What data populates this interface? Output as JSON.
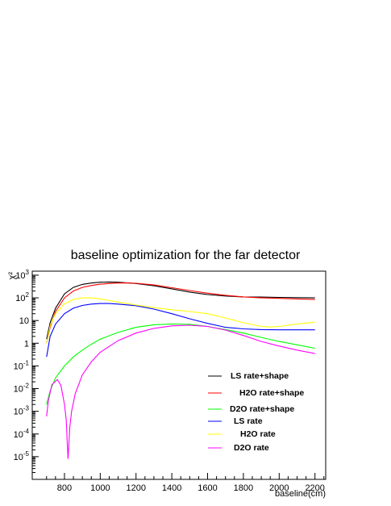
{
  "chart_data": {
    "type": "line",
    "title": "baseline optimization for the far detector",
    "xlabel": "baseline(cm)",
    "ylabel": "χ²",
    "xlim": [
      620,
      2260
    ],
    "ylim": [
      1e-06,
      1500
    ],
    "yscale": "log",
    "grid": false,
    "legend_position": "bottom-right",
    "x_ticks": [
      {
        "value": 800,
        "label": "800"
      },
      {
        "value": 1000,
        "label": "1000"
      },
      {
        "value": 1200,
        "label": "1200"
      },
      {
        "value": 1400,
        "label": "1400"
      },
      {
        "value": 1600,
        "label": "1600"
      },
      {
        "value": 1800,
        "label": "1800"
      },
      {
        "value": 2000,
        "label": "2000"
      },
      {
        "value": 2200,
        "label": "2200"
      }
    ],
    "y_ticks": [
      {
        "value": 1000,
        "base": "10",
        "exp": "3"
      },
      {
        "value": 100,
        "base": "10",
        "exp": "2"
      },
      {
        "value": 10,
        "base": "10",
        "exp": ""
      },
      {
        "value": 1,
        "base": "1",
        "exp": ""
      },
      {
        "value": 0.1,
        "base": "10",
        "exp": "-1"
      },
      {
        "value": 0.01,
        "base": "10",
        "exp": "-2"
      },
      {
        "value": 0.001,
        "base": "10",
        "exp": "-3"
      },
      {
        "value": 0.0001,
        "base": "10",
        "exp": "-4"
      },
      {
        "value": 1e-05,
        "base": "10",
        "exp": "-5"
      }
    ],
    "series": [
      {
        "name": "LS rate+shape",
        "color": "#000000",
        "x": [
          700,
          720,
          750,
          800,
          850,
          900,
          950,
          1000,
          1050,
          1100,
          1200,
          1300,
          1400,
          1500,
          1600,
          1700,
          1800,
          1900,
          2000,
          2100,
          2200
        ],
        "y": [
          1.5,
          8,
          35,
          150,
          290,
          390,
          450,
          490,
          500,
          490,
          430,
          340,
          250,
          180,
          140,
          120,
          110,
          108,
          105,
          102,
          100
        ]
      },
      {
        "name": "H2O rate+shape",
        "color": "#ff0000",
        "x": [
          700,
          720,
          750,
          800,
          850,
          900,
          950,
          1000,
          1050,
          1100,
          1150,
          1200,
          1300,
          1400,
          1500,
          1600,
          1700,
          1800,
          1900,
          2000,
          2100,
          2200
        ],
        "y": [
          1.0,
          5,
          25,
          100,
          200,
          290,
          350,
          400,
          430,
          450,
          455,
          440,
          370,
          280,
          210,
          160,
          130,
          110,
          100,
          95,
          90,
          85
        ]
      },
      {
        "name": "D2O rate+shape",
        "color": "#00ff00",
        "x": [
          700,
          720,
          750,
          800,
          850,
          900,
          950,
          1000,
          1100,
          1200,
          1300,
          1400,
          1500,
          1600,
          1700,
          1800,
          1900,
          2000,
          2100,
          2200
        ],
        "y": [
          0.002,
          0.008,
          0.03,
          0.1,
          0.25,
          0.5,
          0.9,
          1.5,
          3,
          5,
          6.5,
          7,
          6.8,
          5.5,
          4,
          2.8,
          1.8,
          1.2,
          0.85,
          0.6
        ]
      },
      {
        "name": "LS rate",
        "color": "#0000ff",
        "x": [
          700,
          720,
          750,
          800,
          850,
          900,
          950,
          1000,
          1050,
          1100,
          1200,
          1300,
          1400,
          1500,
          1600,
          1700,
          1800,
          1900,
          2000,
          2100,
          2200
        ],
        "y": [
          0.25,
          2,
          7,
          20,
          35,
          46,
          53,
          56,
          56,
          53,
          45,
          32,
          20,
          12,
          7.5,
          5,
          4.3,
          4,
          3.9,
          3.9,
          3.9
        ]
      },
      {
        "name": "H2O rate",
        "color": "#ffff00",
        "x": [
          700,
          720,
          750,
          800,
          850,
          900,
          950,
          1000,
          1100,
          1200,
          1300,
          1400,
          1500,
          1600,
          1700,
          1800,
          1900,
          1950,
          2000,
          2100,
          2200
        ],
        "y": [
          1.0,
          6,
          20,
          55,
          85,
          100,
          100,
          90,
          65,
          48,
          37,
          30,
          25,
          20,
          13,
          8,
          5.5,
          5.2,
          5.5,
          7,
          8.5
        ]
      },
      {
        "name": "D2O rate",
        "color": "#ff00ff",
        "x": [
          700,
          710,
          730,
          760,
          780,
          800,
          810,
          815,
          820,
          825,
          830,
          840,
          860,
          900,
          950,
          1000,
          1100,
          1200,
          1300,
          1400,
          1500,
          1600,
          1700,
          1800,
          1900,
          2000,
          2100,
          2200
        ],
        "y": [
          0.0006,
          0.003,
          0.015,
          0.025,
          0.014,
          0.002,
          0.0004,
          5e-05,
          8e-06,
          4e-05,
          0.0002,
          0.001,
          0.006,
          0.04,
          0.15,
          0.4,
          1.3,
          2.8,
          4.5,
          5.8,
          6.2,
          5.5,
          3.8,
          2.2,
          1.2,
          0.75,
          0.5,
          0.35
        ]
      }
    ]
  }
}
